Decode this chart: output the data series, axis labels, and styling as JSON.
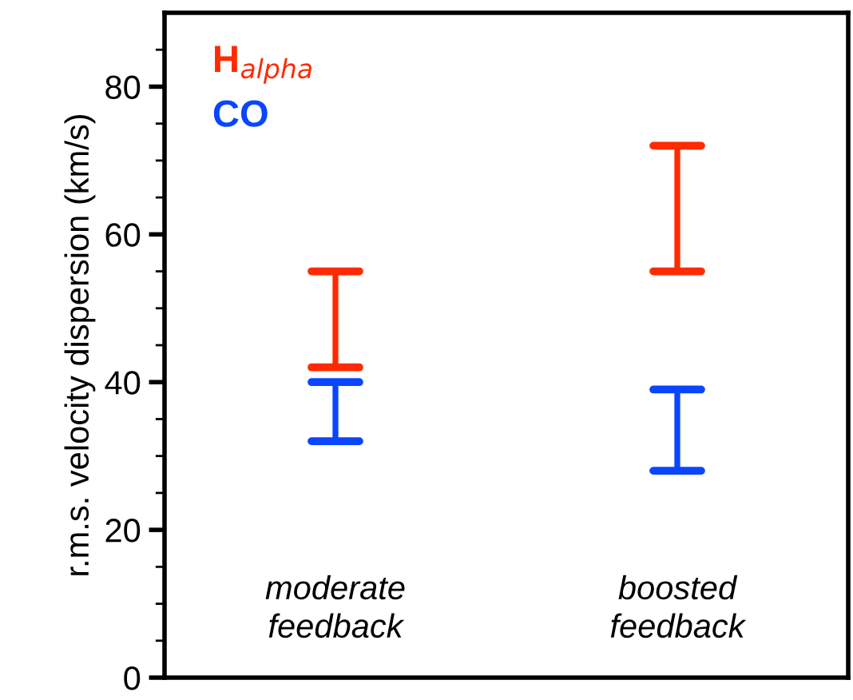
{
  "chart_data": {
    "type": "bar",
    "ylabel": "r.m.s. velocity dispersion (km/s)",
    "categories": [
      "moderate\nfeedback",
      "boosted\nfeedback"
    ],
    "grid": false,
    "tick_labels": "y",
    "ylim": [
      0,
      90
    ],
    "yticks": [
      0,
      {
        "value": 5,
        "label": null
      },
      {
        "value": 10,
        "label": null
      },
      {
        "value": 15,
        "label": null
      },
      20,
      {
        "value": 25,
        "label": null
      },
      {
        "value": 30,
        "label": null
      },
      {
        "value": 35,
        "label": null
      },
      40,
      {
        "value": 45,
        "label": null
      },
      {
        "value": 50,
        "label": null
      },
      {
        "value": 55,
        "label": null
      },
      60,
      {
        "value": 65,
        "label": null
      },
      {
        "value": 70,
        "label": null
      },
      {
        "value": 75,
        "label": null
      },
      80,
      {
        "value": 85,
        "label": null
      }
    ],
    "series": [
      {
        "name": "H$_{alpha}$",
        "color": "#ff2a00",
        "base": [
          42,
          55
        ],
        "values": [
          13,
          17
        ]
      },
      {
        "name": "CO",
        "color": "#0a46ff",
        "base": [
          32,
          28
        ],
        "values": [
          8,
          11
        ]
      }
    ]
  }
}
